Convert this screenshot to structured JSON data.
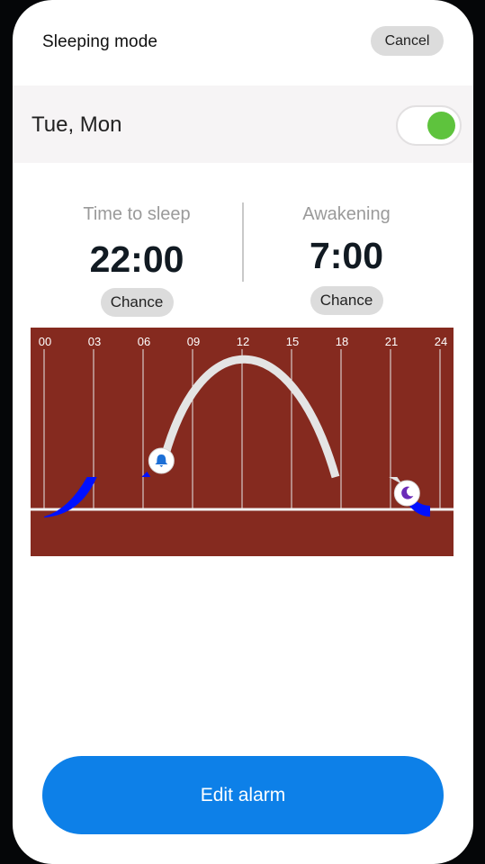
{
  "header": {
    "title": "Sleeping mode",
    "cancel_label": "Cancel"
  },
  "repeat": {
    "days_label": "Tue, Mon",
    "enabled": true
  },
  "sleep": {
    "label": "Time to sleep",
    "time": "22:00",
    "change_label": "Chance"
  },
  "wake": {
    "label": "Awakening",
    "time": "7:00",
    "change_label": "Chance"
  },
  "chart_data": {
    "type": "line",
    "x_ticks": [
      "00",
      "03",
      "06",
      "09",
      "12",
      "15",
      "18",
      "21",
      "24"
    ],
    "xlim": [
      0,
      24
    ],
    "sleep_hour": 22,
    "wake_hour": 7,
    "colors": {
      "background": "#852a1f",
      "grid": "#e8e8e8",
      "sun_curve": "#e4e4e4",
      "sleep_band": "#0010ff",
      "wake_marker_icon": "#1c6fd6",
      "sleep_marker_icon": "#6a2bb8"
    },
    "markers": [
      {
        "name": "wake",
        "icon": "bell-icon",
        "hour": 7
      },
      {
        "name": "sleep",
        "icon": "moon-icon",
        "hour": 22
      }
    ]
  },
  "footer": {
    "edit_label": "Edit alarm"
  }
}
